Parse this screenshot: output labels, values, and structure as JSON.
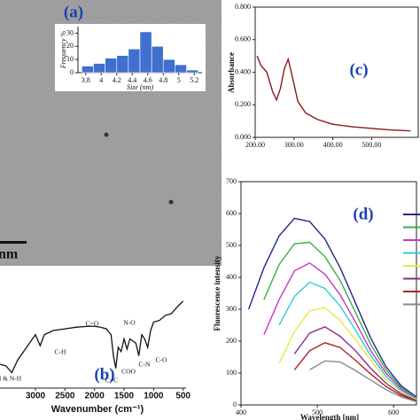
{
  "image": {
    "scale_label": "nm"
  },
  "chart_data": [
    {
      "type": "histogram",
      "panel_label": "(a)",
      "xlabel": "Size (nm)",
      "ylabel": "Frequency %",
      "bins": [
        3.75,
        3.9,
        4.05,
        4.2,
        4.35,
        4.5,
        4.65,
        4.8,
        4.95,
        5.1,
        5.25
      ],
      "values": [
        5,
        7,
        11,
        13,
        18,
        31,
        20,
        10,
        6,
        2
      ],
      "color": "#3f6fcf",
      "xlim": [
        3.7,
        5.3
      ],
      "xticks": [
        3.8,
        4,
        4.2,
        4.4,
        4.6,
        4.8,
        5,
        5.2
      ],
      "ylim": [
        0,
        35
      ],
      "yticks": [
        0,
        10,
        20,
        30
      ]
    },
    {
      "type": "line",
      "panel_label": "(b)",
      "xlabel": "Wavenumber (cm⁻¹)",
      "annotations": [
        "C-H",
        "H & N-H",
        "C=O",
        "N-O",
        "COO",
        "C=C",
        "C-N",
        "C-O"
      ],
      "x": [
        3600,
        3500,
        3400,
        3300,
        3150,
        3000,
        2920,
        2850,
        2700,
        2500,
        2300,
        2100,
        2000,
        1900,
        1800,
        1720,
        1680,
        1640,
        1600,
        1550,
        1500,
        1450,
        1400,
        1300,
        1250,
        1200,
        1150,
        1100,
        1050,
        1000,
        900,
        800,
        700,
        600,
        500
      ],
      "series": [
        {
          "color": "#111111",
          "values": [
            20,
            18,
            10,
            25,
            40,
            55,
            42,
            55,
            60,
            62,
            64,
            65,
            65,
            64,
            62,
            55,
            30,
            15,
            40,
            35,
            50,
            38,
            50,
            45,
            30,
            55,
            50,
            40,
            60,
            70,
            72,
            78,
            80,
            88,
            95
          ]
        }
      ],
      "xlim": [
        3600,
        450
      ],
      "xticks": [
        3000,
        2500,
        2000,
        1500,
        1000,
        500
      ],
      "ylim": [
        0,
        100
      ]
    },
    {
      "type": "line",
      "panel_label": "(c)",
      "ylabel": "Absorbance",
      "x": [
        205,
        215,
        230,
        245,
        255,
        265,
        275,
        285,
        295,
        310,
        330,
        360,
        400,
        450,
        500,
        550,
        600
      ],
      "series": [
        {
          "color": "#8b1a1a",
          "values": [
            0.5,
            0.44,
            0.4,
            0.28,
            0.23,
            0.3,
            0.42,
            0.48,
            0.38,
            0.22,
            0.15,
            0.11,
            0.08,
            0.065,
            0.055,
            0.045,
            0.04
          ]
        }
      ],
      "xlim": [
        200,
        620
      ],
      "xticks": [
        {
          "value": 200,
          "label": "200.00"
        },
        {
          "value": 300,
          "label": "300.00"
        },
        {
          "value": 400,
          "label": "400.00"
        },
        {
          "value": 500,
          "label": "500.00"
        }
      ],
      "ylim": [
        0,
        0.8
      ],
      "yticks": [
        {
          "value": 0,
          "label": "0.000"
        },
        {
          "value": 0.2,
          "label": "0.200"
        },
        {
          "value": 0.4,
          "label": "0.400"
        },
        {
          "value": 0.6,
          "label": "0.600"
        },
        {
          "value": 0.8,
          "label": "0.800"
        }
      ]
    },
    {
      "type": "line",
      "panel_label": "(d)",
      "xlabel": "Wavelength [nm]",
      "ylabel": "Fluorescence intensity",
      "x": [
        410,
        430,
        450,
        470,
        490,
        510,
        530,
        550,
        570,
        590,
        610,
        630
      ],
      "series": [
        {
          "color": "#1f2a8a",
          "values": [
            300,
            430,
            530,
            585,
            575,
            520,
            430,
            320,
            210,
            120,
            60,
            25
          ]
        },
        {
          "color": "#3cb043",
          "values": [
            null,
            330,
            440,
            505,
            510,
            465,
            390,
            290,
            190,
            110,
            55,
            22
          ]
        },
        {
          "color": "#cc33cc",
          "values": [
            null,
            220,
            330,
            420,
            445,
            410,
            345,
            260,
            170,
            100,
            50,
            20
          ]
        },
        {
          "color": "#33cccc",
          "values": [
            null,
            null,
            250,
            340,
            385,
            365,
            310,
            235,
            155,
            90,
            45,
            18
          ]
        },
        {
          "color": "#e8e84a",
          "values": [
            null,
            null,
            130,
            230,
            295,
            305,
            265,
            205,
            140,
            80,
            40,
            16
          ]
        },
        {
          "color": "#8b2a8b",
          "values": [
            null,
            null,
            null,
            160,
            225,
            245,
            215,
            170,
            115,
            68,
            35,
            14
          ]
        },
        {
          "color": "#b22222",
          "values": [
            null,
            null,
            null,
            110,
            170,
            195,
            180,
            140,
            97,
            58,
            30,
            12
          ]
        },
        {
          "color": "#888888",
          "values": [
            null,
            null,
            null,
            null,
            110,
            138,
            135,
            108,
            78,
            48,
            25,
            10
          ]
        }
      ],
      "xlim": [
        400,
        630
      ],
      "xticks": [
        400,
        500,
        600
      ],
      "ylim": [
        0,
        700
      ],
      "yticks": [
        0,
        100,
        200,
        300,
        400,
        500,
        600,
        700
      ],
      "legend": "right"
    }
  ]
}
